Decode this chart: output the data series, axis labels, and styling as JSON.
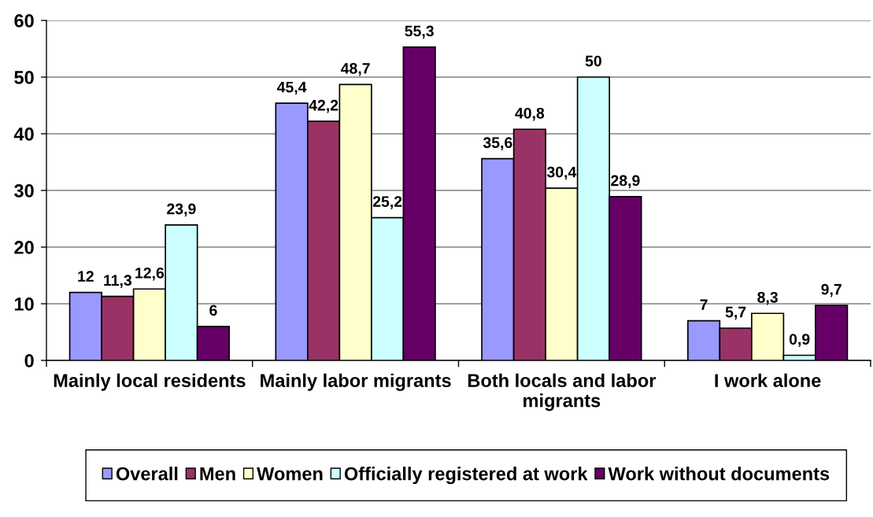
{
  "chart_data": {
    "type": "bar",
    "categories": [
      "Mainly local residents",
      "Mainly labor migrants",
      "Both locals and labor\nmigrants",
      "I work alone"
    ],
    "series": [
      {
        "name": "Overall",
        "color": "#9999ff",
        "values": [
          12,
          45.4,
          35.6,
          7
        ],
        "value_labels": [
          "12",
          "45,4",
          "35,6",
          "7"
        ]
      },
      {
        "name": "Men",
        "color": "#993366",
        "values": [
          11.3,
          42.2,
          40.8,
          5.7
        ],
        "value_labels": [
          "11,3",
          "42,2",
          "40,8",
          "5,7"
        ]
      },
      {
        "name": "Women",
        "color": "#ffffcc",
        "values": [
          12.6,
          48.7,
          30.4,
          8.3
        ],
        "value_labels": [
          "12,6",
          "48,7",
          "30,4",
          "8,3"
        ]
      },
      {
        "name": "Officially registered at work",
        "color": "#ccffff",
        "values": [
          23.9,
          25.2,
          50,
          0.9
        ],
        "value_labels": [
          "23,9",
          "25,2",
          "50",
          "0,9"
        ]
      },
      {
        "name": "Work without documents",
        "color": "#660066",
        "values": [
          6,
          55.3,
          28.9,
          9.7
        ],
        "value_labels": [
          "6",
          "55,3",
          "28,9",
          "9,7"
        ]
      }
    ],
    "ylim": [
      0,
      60
    ],
    "yticks": [
      0,
      10,
      20,
      30,
      40,
      50,
      60
    ],
    "grid": "y",
    "legend": "bottom"
  }
}
